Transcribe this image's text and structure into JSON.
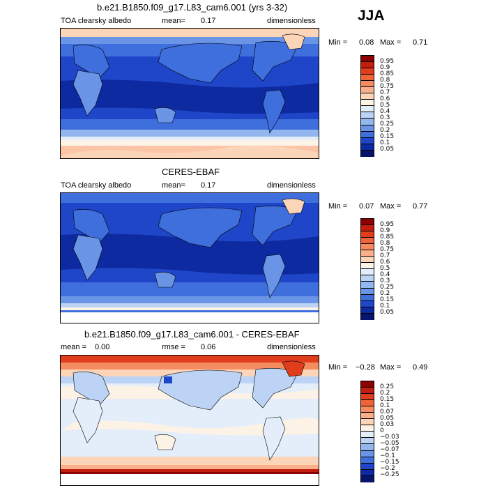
{
  "season": "JJA",
  "panels": [
    {
      "title": "b.e21.B1850.f09_g17.L83_cam6.001 (yrs 3-32)",
      "variable": "TOA clearsky albedo",
      "mean_label": "mean=",
      "mean_value": "0.17",
      "units": "dimensionless",
      "min_label": "Min =",
      "min_value": "0.08",
      "max_label": "Max =",
      "max_value": "0.71",
      "colorbar_labels": [
        "0.95",
        "0.9",
        "0.85",
        "0.8",
        "0.75",
        "0.7",
        "0.6",
        "0.5",
        "0.4",
        "0.3",
        "0.25",
        "0.2",
        "0.15",
        "0.1",
        "0.05"
      ],
      "colorbar_colors": [
        "#8b0000",
        "#c21e0f",
        "#e03d1c",
        "#ee6438",
        "#f58c5f",
        "#f9b08a",
        "#fcd4b8",
        "#fdf2e6",
        "#e3eefa",
        "#bcd3f5",
        "#93b6ee",
        "#6a95e6",
        "#3f6fdc",
        "#1f45c8",
        "#0d2aa0",
        "#06146b"
      ]
    },
    {
      "title": "CERES-EBAF",
      "variable": "TOA clearsky albedo",
      "mean_label": "mean=",
      "mean_value": "0.17",
      "units": "dimensionless",
      "min_label": "Min =",
      "min_value": "0.07",
      "max_label": "Max =",
      "max_value": "0.77",
      "colorbar_labels": [
        "0.95",
        "0.9",
        "0.85",
        "0.8",
        "0.75",
        "0.7",
        "0.6",
        "0.5",
        "0.4",
        "0.3",
        "0.25",
        "0.2",
        "0.15",
        "0.1",
        "0.05"
      ],
      "colorbar_colors": [
        "#8b0000",
        "#c21e0f",
        "#e03d1c",
        "#ee6438",
        "#f58c5f",
        "#f9b08a",
        "#fcd4b8",
        "#fdf2e6",
        "#e3eefa",
        "#bcd3f5",
        "#93b6ee",
        "#6a95e6",
        "#3f6fdc",
        "#1f45c8",
        "#0d2aa0",
        "#06146b"
      ]
    },
    {
      "title": "b.e21.B1850.f09_g17.L83_cam6.001 - CERES-EBAF",
      "mean_label": "mean =",
      "mean_value": "0.00",
      "rmse_label": "rmse =",
      "rmse_value": "0.06",
      "units": "dimensionless",
      "min_label": "Min =",
      "min_value": "−0.28",
      "max_label": "Max =",
      "max_value": "0.49",
      "colorbar_labels": [
        "0.25",
        "0.2",
        "0.15",
        "0.1",
        "0.07",
        "0.05",
        "0.03",
        "0",
        "−0.03",
        "−0.05",
        "−0.07",
        "−0.1",
        "−0.15",
        "−0.2",
        "−0.25"
      ],
      "colorbar_colors": [
        "#8b0000",
        "#c21e0f",
        "#e03d1c",
        "#ee6438",
        "#f58c5f",
        "#f9b08a",
        "#fcd4b8",
        "#fdf2e6",
        "#e3eefa",
        "#bcd3f5",
        "#93b6ee",
        "#6a95e6",
        "#3f6fdc",
        "#1f45c8",
        "#0d2aa0",
        "#06146b"
      ]
    }
  ]
}
